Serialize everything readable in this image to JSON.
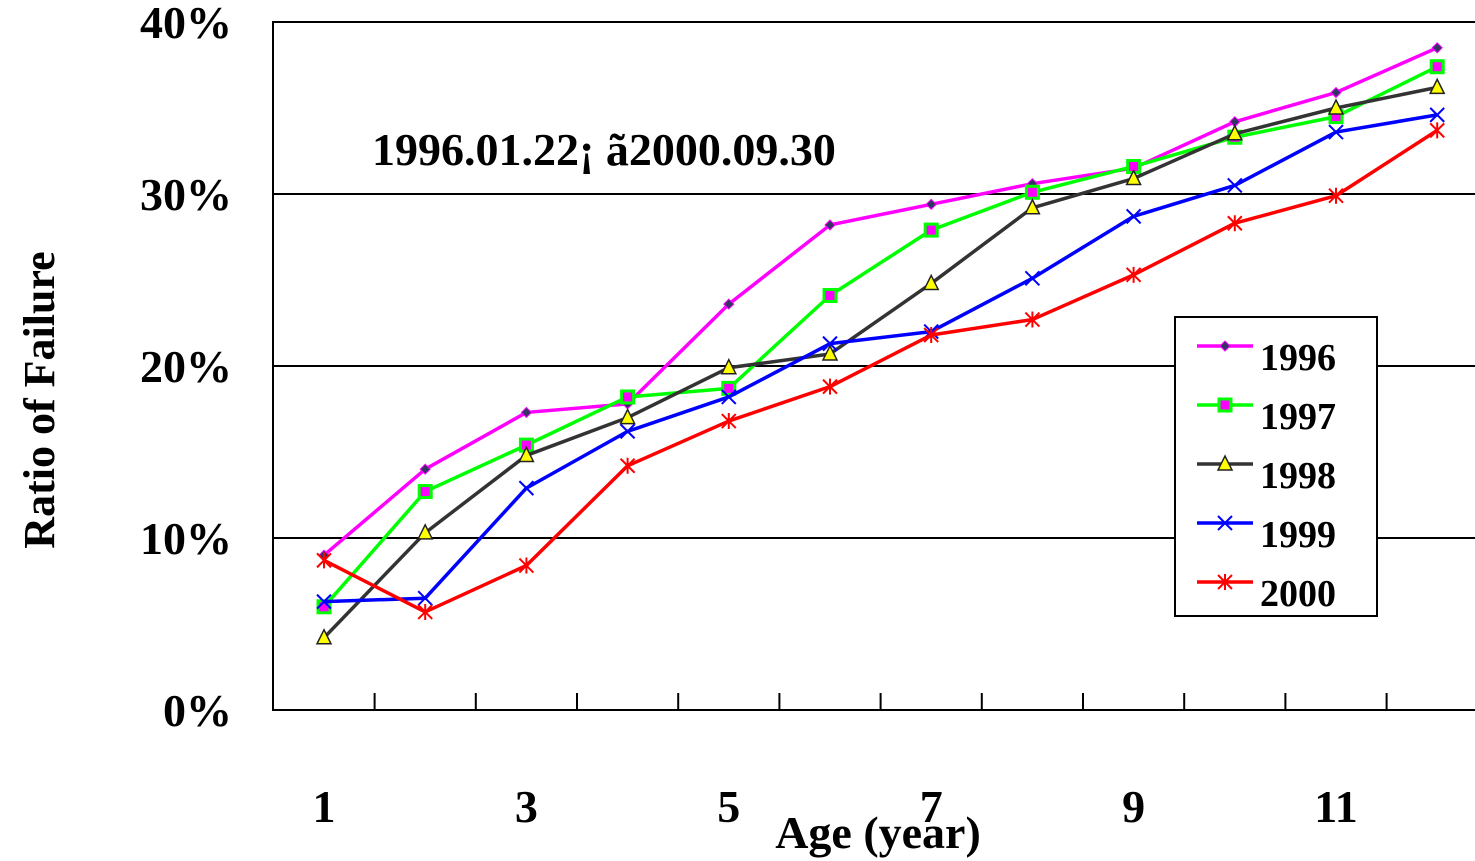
{
  "chart_data": {
    "type": "line",
    "title": "",
    "annotation": "1996.01.22¡ ã2000.09.30",
    "xlabel": "Age (year)",
    "ylabel": "Ratio of Failure",
    "x": [
      1,
      2,
      3,
      4,
      5,
      6,
      7,
      8,
      9,
      10,
      11,
      12
    ],
    "x_tick_labels": [
      "1",
      "3",
      "5",
      "7",
      "9",
      "11"
    ],
    "y_tick_labels": [
      "0%",
      "10%",
      "20%",
      "30%",
      "40%"
    ],
    "ylim": [
      0,
      40
    ],
    "grid": "horizontal major lines",
    "legend": "right",
    "series": [
      {
        "name": "1996",
        "color": "#ff00ff",
        "marker": "diamond",
        "values": [
          9.0,
          14.0,
          17.3,
          17.8,
          23.6,
          28.2,
          29.4,
          30.6,
          31.5,
          34.2,
          35.9,
          38.5
        ]
      },
      {
        "name": "1997",
        "color": "#00ff00",
        "marker": "square",
        "values": [
          6.0,
          12.7,
          15.4,
          18.2,
          18.7,
          24.1,
          27.9,
          30.1,
          31.6,
          33.3,
          34.5,
          37.4
        ]
      },
      {
        "name": "1998",
        "color": "#333333",
        "marker": "triangle",
        "values": [
          4.2,
          10.3,
          14.8,
          17.0,
          19.9,
          20.7,
          24.8,
          29.2,
          30.9,
          33.5,
          35.0,
          36.2
        ]
      },
      {
        "name": "1999",
        "color": "#0000ff",
        "marker": "x",
        "values": [
          6.3,
          6.5,
          12.9,
          16.2,
          18.2,
          21.3,
          22.0,
          25.1,
          28.7,
          30.5,
          33.6,
          34.6
        ]
      },
      {
        "name": "2000",
        "color": "#ff0000",
        "marker": "asterisk",
        "values": [
          8.7,
          5.7,
          8.4,
          14.2,
          16.8,
          18.8,
          21.8,
          22.7,
          25.3,
          28.3,
          29.9,
          33.7
        ]
      }
    ]
  }
}
